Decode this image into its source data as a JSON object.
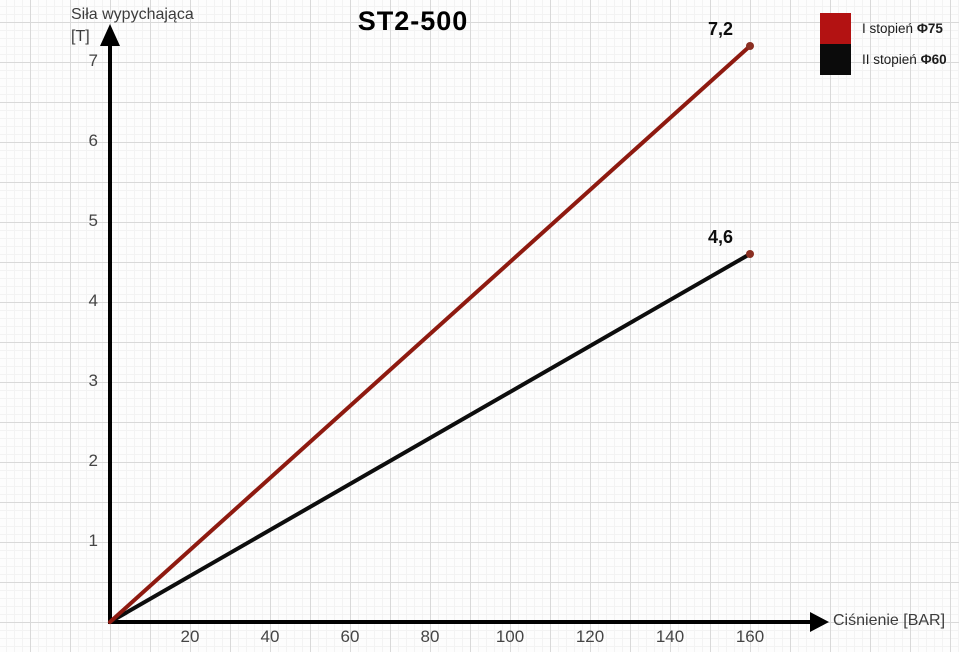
{
  "title": "ST2-500",
  "y_axis": {
    "title_line1": "Siła wypychająca",
    "title_line2": "[T]"
  },
  "x_axis": {
    "title": "Ciśnienie [BAR]"
  },
  "legend": [
    {
      "label": "I stopień",
      "phi": "Φ75",
      "color": "#b31212"
    },
    {
      "label": "II stopień",
      "phi": "Φ60",
      "color": "#0b0b0b"
    }
  ],
  "colors": {
    "axis": "#000000",
    "grid_major": "#d9d9d9",
    "grid_minor": "#f3f3f3",
    "end_dot": "#8a2f22"
  },
  "chart_data": {
    "type": "line",
    "title": "ST2-500",
    "xlabel": "Ciśnienie [BAR]",
    "ylabel": "Siła wypychająca [T]",
    "x_ticks": [
      20,
      40,
      60,
      80,
      100,
      120,
      140,
      160
    ],
    "y_ticks": [
      1,
      2,
      3,
      4,
      5,
      6,
      7
    ],
    "xlim": [
      0,
      175
    ],
    "ylim": [
      0,
      7.5
    ],
    "grid": true,
    "legend_position": "top-right",
    "series": [
      {
        "name": "I stopień Φ75",
        "color": "#8e1a10",
        "x": [
          0,
          160
        ],
        "y": [
          0,
          7.2
        ],
        "end_label": "7,2"
      },
      {
        "name": "II stopień Φ60",
        "color": "#0d0d0d",
        "x": [
          0,
          160
        ],
        "y": [
          0,
          4.6
        ],
        "end_label": "4,6"
      }
    ]
  }
}
